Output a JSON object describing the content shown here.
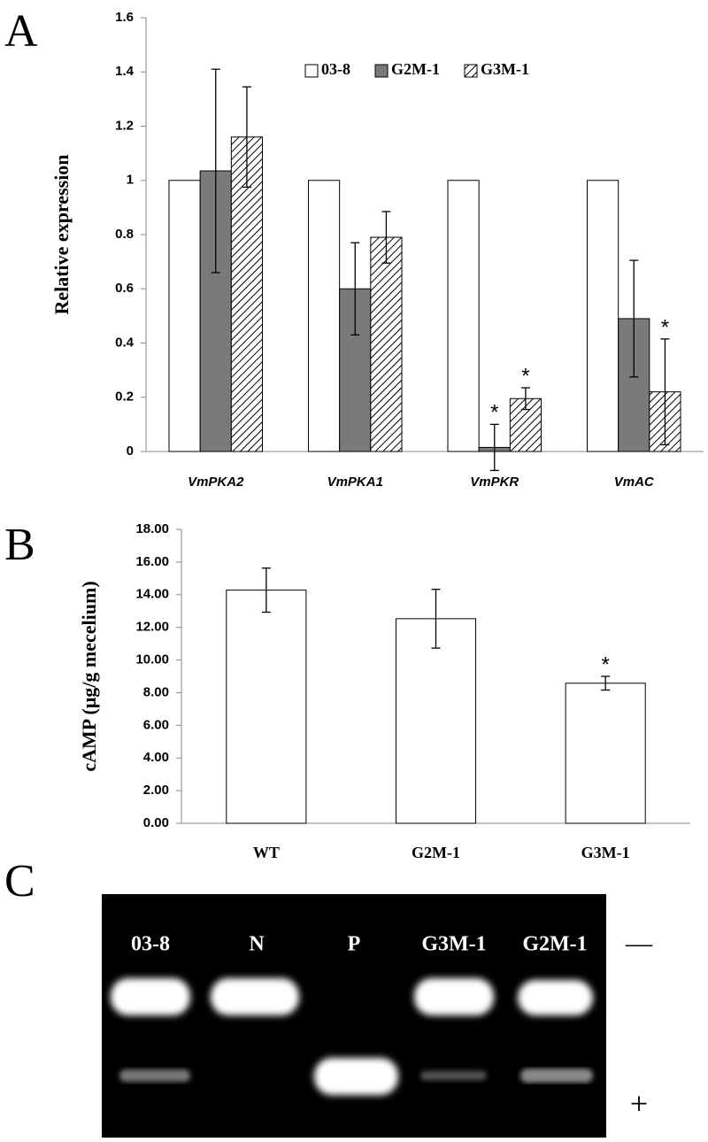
{
  "chart_data": [
    {
      "type": "bar",
      "panel_label": "A",
      "y_label": "Relative expression",
      "categories": [
        "VmPKA2",
        "VmPKA1",
        "VmPKR",
        "VmAC"
      ],
      "series": [
        {
          "name": "03-8",
          "color": "#ffffff",
          "values": [
            1,
            1,
            1,
            1
          ]
        },
        {
          "name": "G2M-1",
          "color": "#7a7a7a",
          "values": [
            1.035,
            0.6,
            0.015,
            0.49
          ],
          "errors": [
            0.375,
            0.17,
            0.085,
            0.215
          ]
        },
        {
          "name": "G3M-1",
          "color": "#ffffff",
          "hatch": true,
          "values": [
            1.16,
            0.79,
            0.195,
            0.22
          ],
          "errors": [
            0.185,
            0.095,
            0.04,
            0.195
          ]
        }
      ],
      "annotations": [
        {
          "text": "*",
          "category": "VmPKR",
          "series": "G2M-1"
        },
        {
          "text": "*",
          "category": "VmPKR",
          "series": "G3M-1"
        },
        {
          "text": "*",
          "category": "VmAC",
          "series": "G3M-1"
        }
      ],
      "ylim": [
        0,
        1.6
      ],
      "yticks": [
        0,
        0.2,
        0.4,
        0.6,
        0.8,
        1,
        1.2,
        1.4,
        1.6
      ],
      "legend": "top",
      "grid": false
    },
    {
      "type": "bar",
      "panel_label": "B",
      "y_label": "cAMP (μg/g mecelium)",
      "categories": [
        "WT",
        "G2M-1",
        "G3M-1"
      ],
      "series": [
        {
          "color": "#ffffff",
          "values": [
            14.28,
            12.53,
            8.58
          ],
          "errors": [
            1.35,
            1.8,
            0.42
          ]
        }
      ],
      "annotations": [
        {
          "text": "*",
          "category": "G3M-1"
        }
      ],
      "ylim": [
        0,
        18
      ],
      "yticks": [
        {
          "value": 0,
          "label": "0.00"
        },
        {
          "value": 2,
          "label": "2.00"
        },
        {
          "value": 4,
          "label": "4.00"
        },
        {
          "value": 6,
          "label": "6.00"
        },
        {
          "value": 8,
          "label": "8.00"
        },
        {
          "value": 10,
          "label": "10.00"
        },
        {
          "value": 12,
          "label": "12.00"
        },
        {
          "value": 14,
          "label": "14.00"
        },
        {
          "value": 16,
          "label": "16.00"
        },
        {
          "value": 18,
          "label": "18.00"
        }
      ],
      "grid": false
    }
  ],
  "gel": {
    "panel_label": "C",
    "lanes": [
      "03-8",
      "N",
      "P",
      "G3M-1",
      "G2M-1"
    ],
    "minus": "—",
    "plus": "+"
  }
}
